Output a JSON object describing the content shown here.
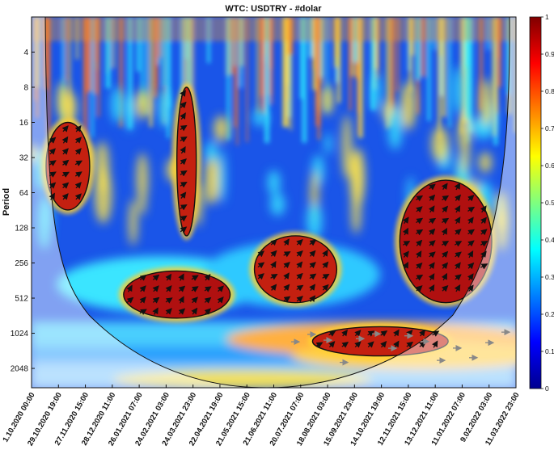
{
  "chart_data": {
    "type": "heatmap",
    "title": "WTC: USDTRY - #dolar",
    "xlabel": "",
    "ylabel": "Period",
    "x_tick_labels": [
      "1.10.2020 00:00",
      "29.10.2020 19:00",
      "27.11.2020 15:00",
      "28.12.2020 11:00",
      "26.01.2021 07:00",
      "24.02.2021 03:00",
      "24.03.2021 23:00",
      "22.04.2021 19:00",
      "21.05.2021 15:00",
      "21.06.2021 11:00",
      "20.07.2021 07:00",
      "18.08.2021 03:00",
      "15.09.2021 23:00",
      "14.10.2021 19:00",
      "12.11.2021 15:00",
      "13.12.2021 11:00",
      "11.01.2022 07:00",
      "9.02.2022 03:00",
      "11.03.2022 23:00"
    ],
    "y_ticks": [
      4,
      8,
      16,
      32,
      64,
      128,
      256,
      512,
      1024,
      2048
    ],
    "y_scale": "log2",
    "y_range": [
      2,
      3000
    ],
    "colorbar": {
      "min": 0,
      "max": 1,
      "ticks": [
        0,
        0.1,
        0.2,
        0.3,
        0.4,
        0.5,
        0.6,
        0.7,
        0.8,
        0.9,
        1
      ],
      "colormap": "jet"
    },
    "significant_regions": [
      {
        "time_frac": [
          0.19,
          0.41
        ],
        "period": [
          300,
          760
        ],
        "coherence": 0.95
      },
      {
        "time_frac": [
          0.46,
          0.63
        ],
        "period": [
          150,
          560
        ],
        "coherence": 0.9
      },
      {
        "time_frac": [
          0.76,
          0.95
        ],
        "period": [
          50,
          560
        ],
        "coherence": 0.95
      },
      {
        "time_frac": [
          0.58,
          0.86
        ],
        "period": [
          900,
          1600
        ],
        "coherence": 0.9
      },
      {
        "time_frac": [
          0.03,
          0.12
        ],
        "period": [
          16,
          90
        ],
        "coherence": 0.85
      },
      {
        "time_frac": [
          0.3,
          0.34
        ],
        "period": [
          8,
          150
        ],
        "coherence": 0.9
      }
    ]
  }
}
